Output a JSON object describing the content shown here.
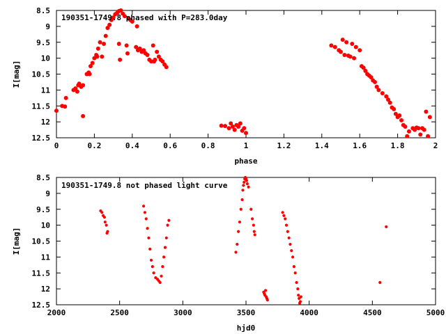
{
  "chart_data": [
    {
      "type": "scatter",
      "title": "190351-1749.8 phased with P=283.0day",
      "xlabel": "phase",
      "ylabel": "I[mag]",
      "xlim": [
        0,
        2
      ],
      "ylim": [
        12.5,
        8.5
      ],
      "y_inverted": true,
      "xticks": [
        0,
        0.2,
        0.4,
        0.6,
        0.8,
        1,
        1.2,
        1.4,
        1.6,
        1.8,
        2
      ],
      "yticks": [
        8.5,
        9,
        9.5,
        10,
        10.5,
        11,
        11.5,
        12,
        12.5
      ],
      "xtick_labels": [
        "0",
        "0.2",
        "0.4",
        "0.6",
        "0.8",
        "1",
        "1.2",
        "1.4",
        "1.6",
        "1.8",
        "2"
      ],
      "ytick_labels": [
        "8.5",
        "9",
        "9.5",
        "10",
        "10.5",
        "11",
        "11.5",
        "12",
        "12.5"
      ],
      "grid": false,
      "marker_color": "#ff0000",
      "points": [
        [
          0.0,
          11.65
        ],
        [
          0.03,
          11.5
        ],
        [
          0.045,
          11.52
        ],
        [
          0.05,
          11.25
        ],
        [
          0.09,
          11.0
        ],
        [
          0.1,
          10.95
        ],
        [
          0.11,
          11.05
        ],
        [
          0.115,
          10.85
        ],
        [
          0.12,
          10.8
        ],
        [
          0.13,
          10.9
        ],
        [
          0.14,
          10.85
        ],
        [
          0.14,
          11.82
        ],
        [
          0.16,
          10.5
        ],
        [
          0.17,
          10.45
        ],
        [
          0.175,
          10.5
        ],
        [
          0.18,
          10.25
        ],
        [
          0.19,
          10.15
        ],
        [
          0.2,
          10.0
        ],
        [
          0.21,
          9.9
        ],
        [
          0.215,
          9.95
        ],
        [
          0.22,
          9.7
        ],
        [
          0.23,
          9.5
        ],
        [
          0.24,
          9.95
        ],
        [
          0.25,
          9.55
        ],
        [
          0.26,
          9.3
        ],
        [
          0.27,
          9.05
        ],
        [
          0.28,
          8.95
        ],
        [
          0.29,
          8.8
        ],
        [
          0.3,
          8.72
        ],
        [
          0.31,
          8.62
        ],
        [
          0.32,
          8.58
        ],
        [
          0.33,
          8.52
        ],
        [
          0.33,
          9.55
        ],
        [
          0.335,
          10.05
        ],
        [
          0.34,
          8.5
        ],
        [
          0.35,
          8.6
        ],
        [
          0.36,
          8.68
        ],
        [
          0.37,
          9.6
        ],
        [
          0.375,
          9.85
        ],
        [
          0.38,
          8.75
        ],
        [
          0.39,
          8.8
        ],
        [
          0.4,
          8.85
        ],
        [
          0.42,
          9.65
        ],
        [
          0.425,
          9.0
        ],
        [
          0.43,
          9.75
        ],
        [
          0.44,
          9.7
        ],
        [
          0.45,
          9.8
        ],
        [
          0.46,
          9.75
        ],
        [
          0.47,
          9.85
        ],
        [
          0.48,
          9.9
        ],
        [
          0.49,
          10.05
        ],
        [
          0.5,
          10.1
        ],
        [
          0.51,
          9.6
        ],
        [
          0.515,
          10.1
        ],
        [
          0.52,
          10.05
        ],
        [
          0.53,
          9.8
        ],
        [
          0.54,
          9.95
        ],
        [
          0.55,
          10.05
        ],
        [
          0.56,
          10.1
        ],
        [
          0.57,
          10.2
        ],
        [
          0.58,
          10.28
        ],
        [
          0.87,
          12.12
        ],
        [
          0.89,
          12.13
        ],
        [
          0.91,
          12.2
        ],
        [
          0.92,
          12.05
        ],
        [
          0.93,
          12.15
        ],
        [
          0.94,
          12.25
        ],
        [
          0.95,
          12.1
        ],
        [
          0.96,
          12.15
        ],
        [
          0.97,
          12.05
        ],
        [
          0.98,
          12.28
        ],
        [
          0.99,
          12.2
        ],
        [
          1.0,
          12.35
        ],
        [
          1.45,
          9.6
        ],
        [
          1.47,
          9.65
        ],
        [
          1.49,
          9.75
        ],
        [
          1.5,
          9.8
        ],
        [
          1.51,
          9.42
        ],
        [
          1.52,
          9.9
        ],
        [
          1.53,
          9.5
        ],
        [
          1.54,
          9.92
        ],
        [
          1.55,
          9.95
        ],
        [
          1.56,
          9.55
        ],
        [
          1.57,
          10.0
        ],
        [
          1.58,
          9.65
        ],
        [
          1.6,
          9.75
        ],
        [
          1.61,
          10.25
        ],
        [
          1.62,
          10.3
        ],
        [
          1.63,
          10.4
        ],
        [
          1.64,
          10.5
        ],
        [
          1.65,
          10.55
        ],
        [
          1.66,
          10.6
        ],
        [
          1.67,
          10.7
        ],
        [
          1.68,
          10.75
        ],
        [
          1.69,
          10.9
        ],
        [
          1.7,
          11.0
        ],
        [
          1.72,
          11.1
        ],
        [
          1.74,
          11.2
        ],
        [
          1.75,
          11.3
        ],
        [
          1.76,
          11.4
        ],
        [
          1.77,
          11.55
        ],
        [
          1.78,
          11.6
        ],
        [
          1.79,
          11.75
        ],
        [
          1.8,
          11.85
        ],
        [
          1.81,
          11.8
        ],
        [
          1.82,
          11.95
        ],
        [
          1.83,
          12.1
        ],
        [
          1.84,
          12.15
        ],
        [
          1.85,
          12.45
        ],
        [
          1.86,
          12.3
        ],
        [
          1.88,
          12.2
        ],
        [
          1.89,
          12.25
        ],
        [
          1.9,
          12.18
        ],
        [
          1.91,
          12.2
        ],
        [
          1.92,
          12.4
        ],
        [
          1.93,
          12.2
        ],
        [
          1.94,
          12.25
        ],
        [
          1.95,
          11.68
        ],
        [
          1.96,
          12.45
        ],
        [
          1.97,
          11.85
        ]
      ]
    },
    {
      "type": "scatter",
      "title": "190351-1749.8 not phased light curve",
      "xlabel": "hjd0",
      "ylabel": "I[mag]",
      "xlim": [
        2000,
        5000
      ],
      "ylim": [
        12.5,
        8.5
      ],
      "y_inverted": true,
      "xticks": [
        2000,
        2500,
        3000,
        3500,
        4000,
        4500,
        5000
      ],
      "yticks": [
        8.5,
        9,
        9.5,
        10,
        10.5,
        11,
        11.5,
        12,
        12.5
      ],
      "xtick_labels": [
        "2000",
        "2500",
        "3000",
        "3500",
        "4000",
        "4500",
        "5000"
      ],
      "ytick_labels": [
        "8.5",
        "9",
        "9.5",
        "10",
        "10.5",
        "11",
        "11.5",
        "12",
        "12.5"
      ],
      "grid": false,
      "marker_color": "#ff0000",
      "points": [
        [
          2350,
          9.55
        ],
        [
          2360,
          9.6
        ],
        [
          2370,
          9.7
        ],
        [
          2380,
          9.75
        ],
        [
          2385,
          9.9
        ],
        [
          2395,
          10.0
        ],
        [
          2400,
          10.25
        ],
        [
          2405,
          10.2
        ],
        [
          2690,
          9.4
        ],
        [
          2700,
          9.6
        ],
        [
          2710,
          9.8
        ],
        [
          2720,
          10.1
        ],
        [
          2730,
          10.4
        ],
        [
          2740,
          10.75
        ],
        [
          2750,
          11.1
        ],
        [
          2760,
          11.3
        ],
        [
          2770,
          11.5
        ],
        [
          2785,
          11.65
        ],
        [
          2800,
          11.7
        ],
        [
          2810,
          11.75
        ],
        [
          2820,
          11.8
        ],
        [
          2830,
          11.6
        ],
        [
          2840,
          11.3
        ],
        [
          2850,
          11.0
        ],
        [
          2860,
          10.7
        ],
        [
          2870,
          10.4
        ],
        [
          2880,
          10.0
        ],
        [
          2890,
          9.85
        ],
        [
          3420,
          10.85
        ],
        [
          3430,
          10.6
        ],
        [
          3440,
          10.2
        ],
        [
          3450,
          9.9
        ],
        [
          3460,
          9.5
        ],
        [
          3470,
          9.2
        ],
        [
          3475,
          8.9
        ],
        [
          3480,
          8.75
        ],
        [
          3485,
          8.65
        ],
        [
          3490,
          8.55
        ],
        [
          3495,
          8.5
        ],
        [
          3500,
          8.55
        ],
        [
          3505,
          8.6
        ],
        [
          3510,
          8.7
        ],
        [
          3520,
          8.8
        ],
        [
          3540,
          9.5
        ],
        [
          3550,
          9.8
        ],
        [
          3560,
          10.0
        ],
        [
          3565,
          10.2
        ],
        [
          3570,
          10.3
        ],
        [
          3640,
          12.1
        ],
        [
          3645,
          12.15
        ],
        [
          3650,
          12.2
        ],
        [
          3655,
          12.05
        ],
        [
          3660,
          12.25
        ],
        [
          3665,
          12.3
        ],
        [
          3670,
          12.35
        ],
        [
          3790,
          9.6
        ],
        [
          3800,
          9.7
        ],
        [
          3810,
          9.8
        ],
        [
          3820,
          10.0
        ],
        [
          3830,
          10.2
        ],
        [
          3840,
          10.4
        ],
        [
          3850,
          10.6
        ],
        [
          3860,
          10.8
        ],
        [
          3870,
          11.0
        ],
        [
          3880,
          11.3
        ],
        [
          3890,
          11.5
        ],
        [
          3900,
          11.8
        ],
        [
          3910,
          12.0
        ],
        [
          3915,
          12.2
        ],
        [
          3920,
          12.3
        ],
        [
          3925,
          12.45
        ],
        [
          3930,
          12.4
        ],
        [
          3935,
          12.25
        ],
        [
          4560,
          11.8
        ],
        [
          4610,
          10.05
        ]
      ]
    }
  ]
}
